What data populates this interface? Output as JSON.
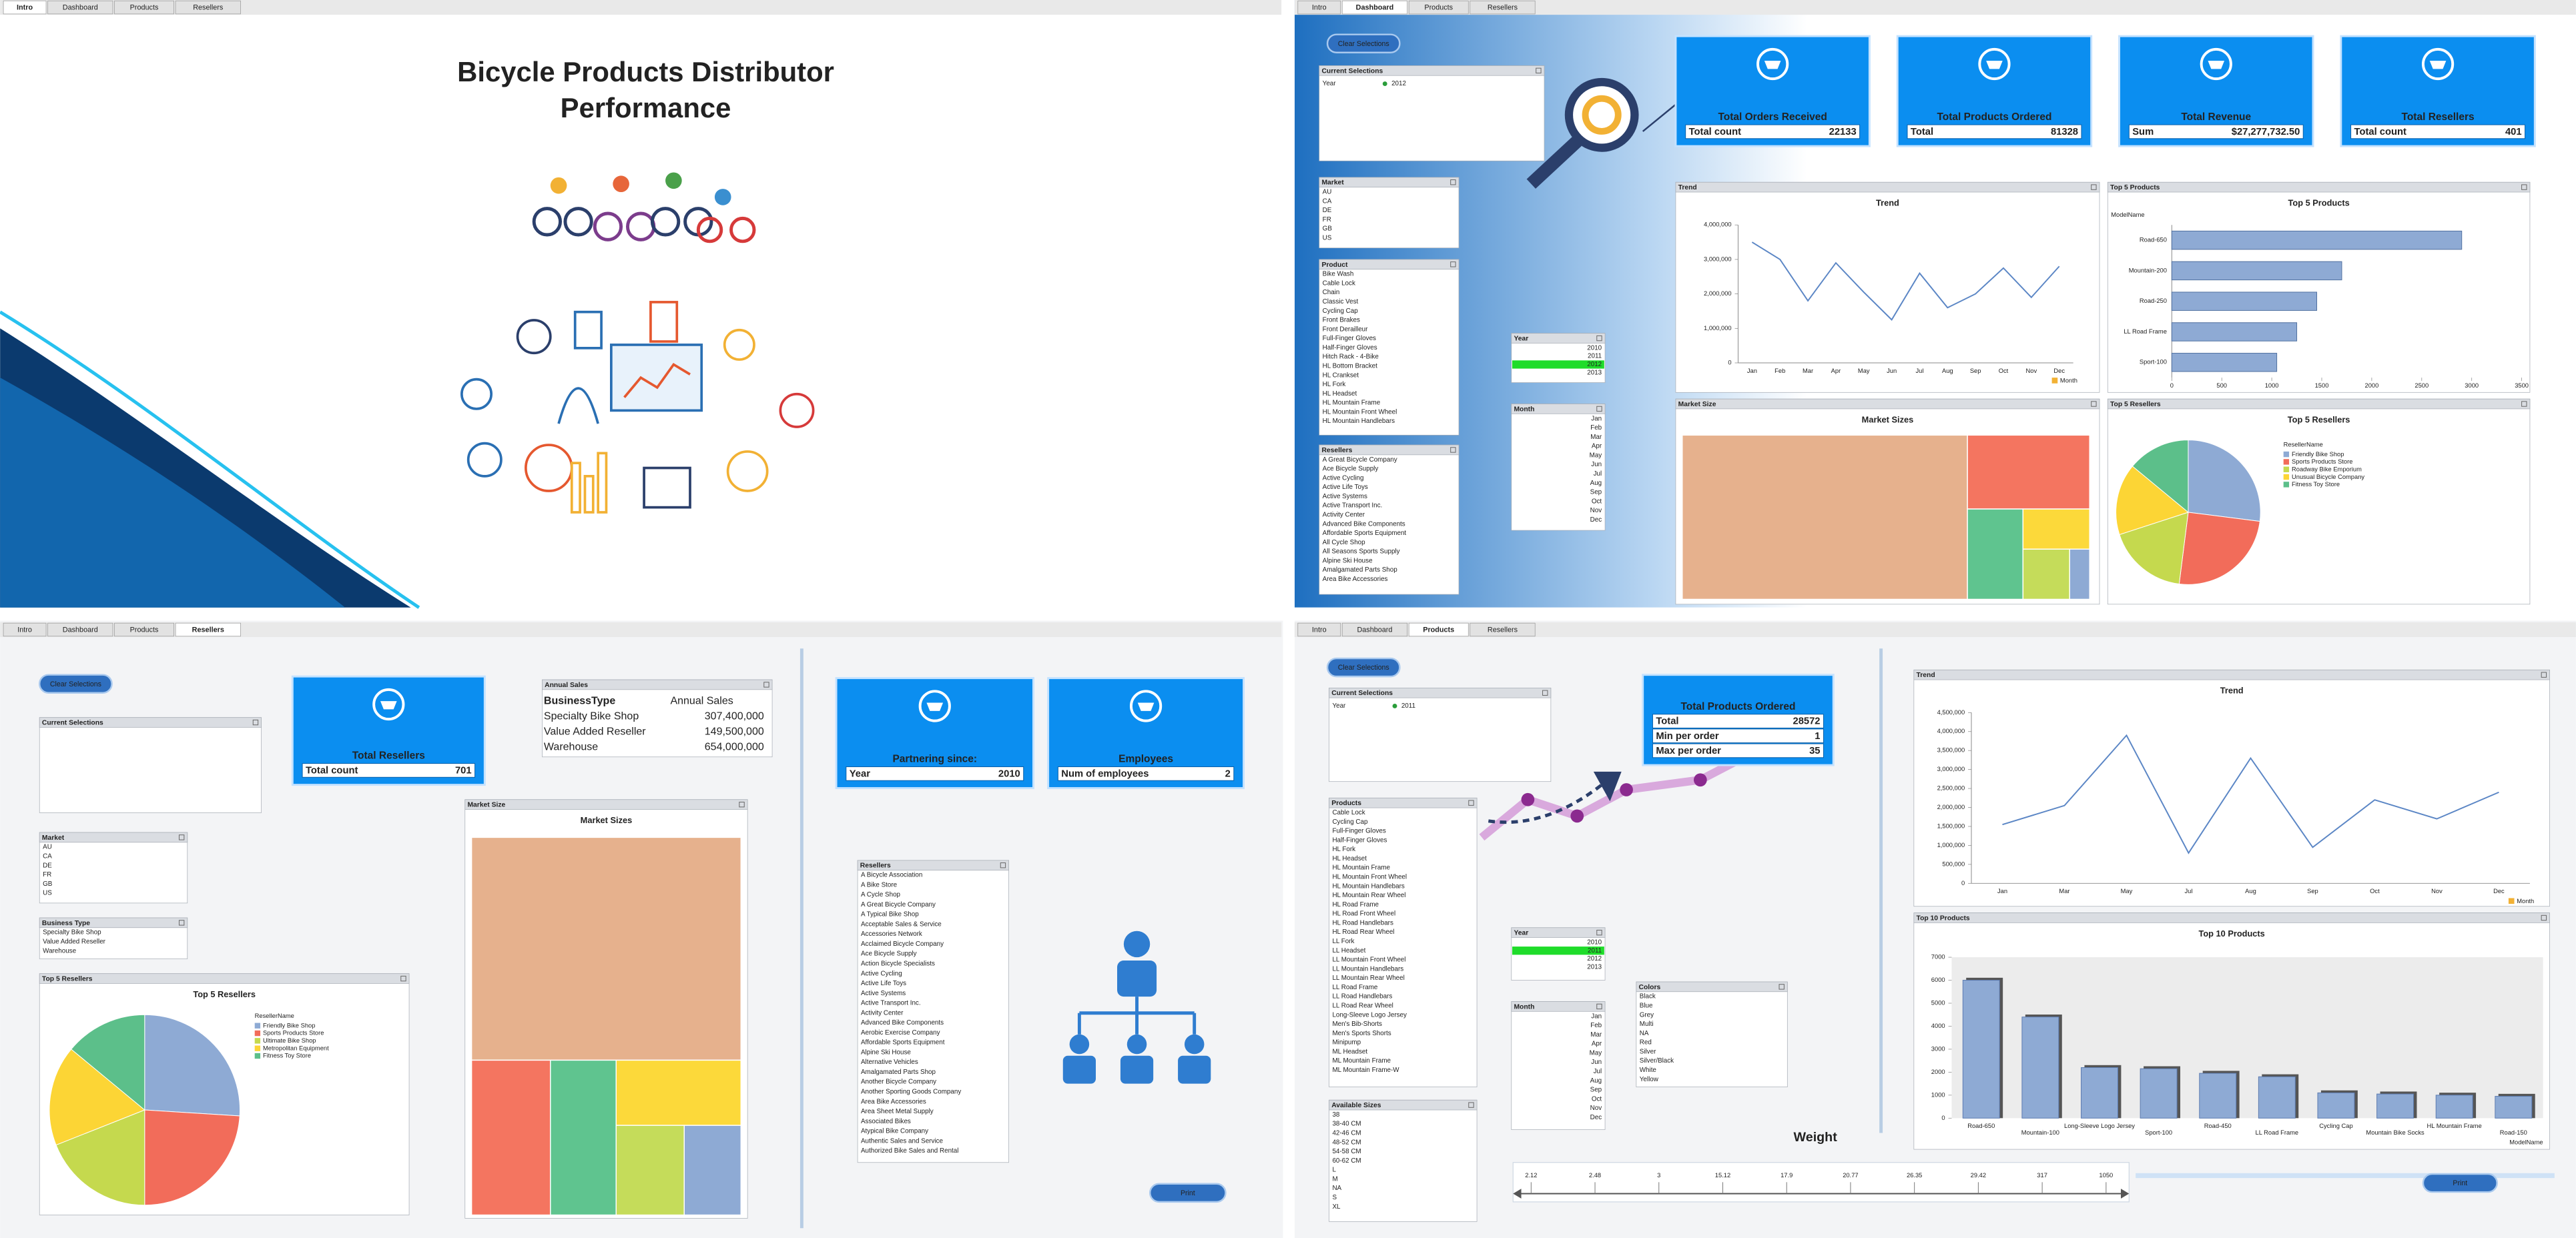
{
  "intro": {
    "tabs": [
      "Intro",
      "Dashboard",
      "Products",
      "Resellers"
    ],
    "active_tab": 0,
    "title": [
      "Bicycle Products Distributor",
      "Performance"
    ]
  },
  "dashboard": {
    "tabs": [
      "Intro",
      "Dashboard",
      "Products",
      "Resellers"
    ],
    "active_tab": 1,
    "clear": "Clear Selections",
    "current": {
      "title": "Current Selections",
      "field": "Year",
      "value": "2012"
    },
    "market": {
      "title": "Market",
      "items": [
        "AU",
        "CA",
        "DE",
        "FR",
        "GB",
        "US"
      ]
    },
    "product": {
      "title": "Product",
      "items": [
        "Bike Wash",
        "Cable Lock",
        "Chain",
        "Classic Vest",
        "Cycling Cap",
        "Front Brakes",
        "Front Derailleur",
        "Full-Finger Gloves",
        "Half-Finger Gloves",
        "Hitch Rack - 4-Bike",
        "HL Bottom Bracket",
        "HL Crankset",
        "HL Fork",
        "HL Headset",
        "HL Mountain Frame",
        "HL Mountain Front Wheel",
        "HL Mountain Handlebars"
      ]
    },
    "resellers": {
      "title": "Resellers",
      "items": [
        "A Great Bicycle Company",
        "Ace Bicycle Supply",
        "Active Cycling",
        "Active Life Toys",
        "Active Systems",
        "Active Transport Inc.",
        "Activity Center",
        "Advanced Bike Components",
        "Affordable Sports Equipment",
        "All Cycle Shop",
        "All Seasons Sports Supply",
        "Alpine Ski House",
        "Amalgamated Parts Shop",
        "Area Bike Accessories"
      ]
    },
    "year": {
      "title": "Year",
      "items": [
        "2010",
        "2011",
        "2012",
        "2013"
      ],
      "selected": 2,
      "align": "right"
    },
    "month": {
      "title": "Month",
      "items": [
        "Jan",
        "Feb",
        "Mar",
        "Apr",
        "May",
        "Jun",
        "Jul",
        "Aug",
        "Sep",
        "Oct",
        "Nov",
        "Dec"
      ],
      "align": "right"
    },
    "kpis": [
      {
        "title": "Total Orders Received",
        "rows": [
          {
            "label": "Total count",
            "value": 22133
          }
        ]
      },
      {
        "title": "Total Products Ordered",
        "rows": [
          {
            "label": "Total",
            "value": 81328
          }
        ]
      },
      {
        "title": "Total Revenue",
        "rows": [
          {
            "label": "Sum",
            "value": "$27,277,732.50"
          }
        ]
      },
      {
        "title": "Total Resellers",
        "rows": [
          {
            "label": "Total count",
            "value": 401
          }
        ]
      }
    ],
    "trend": {
      "header": "Trend",
      "type": "line",
      "title": "Trend",
      "legend": "Month",
      "color": "#5b86c5",
      "categories": [
        "Jan",
        "Feb",
        "Mar",
        "Apr",
        "May",
        "Jun",
        "Jul",
        "Aug",
        "Sep",
        "Oct",
        "Nov",
        "Dec"
      ],
      "values": [
        3500000,
        3000000,
        1800000,
        2900000,
        2050000,
        1250000,
        2600000,
        1600000,
        2000000,
        2750000,
        1900000,
        2800000
      ],
      "ylim": [
        0,
        4000000
      ],
      "yticks": [
        0,
        {
          "value": 1000000,
          "label": "1,000,000"
        },
        {
          "value": 2000000,
          "label": "2,000,000"
        },
        {
          "value": 3000000,
          "label": "3,000,000"
        },
        {
          "value": 4000000,
          "label": "4,000,000"
        }
      ]
    },
    "top_products": {
      "header": "Top 5 Products",
      "type": "hbar",
      "title": "Top 5 Products",
      "axis_label": "ModelName",
      "color": "#8eaad4",
      "categories": [
        "Road-650",
        "Mountain-200",
        "Road-250",
        "LL Road Frame",
        "Sport-100"
      ],
      "values": [
        2900,
        1700,
        1450,
        1250,
        1050
      ],
      "xlim": [
        0,
        3500
      ],
      "xticks": [
        0,
        500,
        1000,
        1500,
        2000,
        2500,
        3000,
        3500
      ]
    },
    "market_size": {
      "header": "Market Size",
      "type": "treemap",
      "title": "Market Sizes",
      "values": [
        70,
        13.5,
        7.5,
        4,
        3.5,
        1.5
      ],
      "colors": [
        "#e6b18d",
        "#f47560",
        "#5fc48f",
        "#fcd93a",
        "#c5dc5a",
        "#8eaad4"
      ]
    },
    "top_resellers": {
      "header": "Top 5 Resellers",
      "type": "pie",
      "title": "Top 5 Resellers",
      "legend_title": "ResellerName",
      "categories": [
        "Friendly Bike Shop",
        "Sports Products Store",
        "Roadway Bike Emporium",
        "Unusual Bicycle Company",
        "Fitness Toy Store"
      ],
      "values": [
        27,
        25,
        18,
        16,
        14
      ],
      "colors": [
        "#8eaad4",
        "#f26c5a",
        "#c5d94e",
        "#fcd535",
        "#5cbf8a"
      ]
    }
  },
  "resellers_page": {
    "tabs": [
      "Intro",
      "Dashboard",
      "Products",
      "Resellers"
    ],
    "active_tab": 3,
    "clear": "Clear Selections",
    "print": "Print",
    "current": {
      "title": "Current Selections"
    },
    "market": {
      "title": "Market",
      "items": [
        "AU",
        "CA",
        "DE",
        "FR",
        "GB",
        "US"
      ]
    },
    "business_type": {
      "title": "Business Type",
      "items": [
        "Specialty Bike Shop",
        "Value Added Reseller",
        "Warehouse"
      ]
    },
    "top_resellers": {
      "header": "Top 5 Resellers",
      "type": "pie",
      "title": "Top 5 Resellers",
      "legend_title": "ResellerName",
      "categories": [
        "Friendly Bike Shop",
        "Sports Products Store",
        "Ultimate Bike Shop",
        "Metropolitan Equipment",
        "Fitness Toy Store"
      ],
      "values": [
        26,
        24,
        19,
        17,
        14
      ],
      "colors": [
        "#8eaad4",
        "#f26c5a",
        "#c5d94e",
        "#fcd535",
        "#5cbf8a"
      ]
    },
    "kpi_resellers": {
      "title": "Total Resellers",
      "rows": [
        {
          "label": "Total count",
          "value": 701
        }
      ]
    },
    "annual_sales": {
      "title": "Annual Sales",
      "columns": [
        "BusinessType",
        "Annual Sales"
      ],
      "rows": [
        [
          "Specialty Bike Shop",
          "307,400,000"
        ],
        [
          "Value Added Reseller",
          "149,500,000"
        ],
        [
          "Warehouse",
          "654,000,000"
        ]
      ]
    },
    "market_size": {
      "header": "Market Size",
      "type": "treemap",
      "title": "Market Sizes",
      "values": [
        59,
        12,
        10,
        8,
        6,
        5
      ],
      "colors": [
        "#e6b18d",
        "#f47560",
        "#5fc48f",
        "#fcd93a",
        "#c5dc5a",
        "#8eaad4"
      ]
    },
    "kpi_partner": {
      "title": "Partnering since:",
      "rows": [
        {
          "label": "Year",
          "value": 2010
        }
      ]
    },
    "kpi_employees": {
      "title": "Employees",
      "rows": [
        {
          "label": "Num of employees",
          "value": 2
        }
      ]
    },
    "resellers": {
      "title": "Resellers",
      "items": [
        "A Bicycle Association",
        "A Bike Store",
        "A Cycle Shop",
        "A Great Bicycle Company",
        "A Typical Bike Shop",
        "Acceptable Sales & Service",
        "Accessories Network",
        "Acclaimed Bicycle Company",
        "Ace Bicycle Supply",
        "Action Bicycle Specialists",
        "Active Cycling",
        "Active Life Toys",
        "Active Systems",
        "Active Transport Inc.",
        "Activity Center",
        "Advanced Bike Components",
        "Aerobic Exercise Company",
        "Affordable Sports Equipment",
        "Alpine Ski House",
        "Alternative Vehicles",
        "Amalgamated Parts Shop",
        "Another Bicycle Company",
        "Another Sporting Goods Company",
        "Area Bike Accessories",
        "Area Sheet Metal Supply",
        "Associated Bikes",
        "Atypical Bike Company",
        "Authentic Sales and Service",
        "Authorized Bike Sales and Rental"
      ]
    }
  },
  "products_page": {
    "tabs": [
      "Intro",
      "Dashboard",
      "Products",
      "Resellers"
    ],
    "active_tab": 2,
    "clear": "Clear Selections",
    "print": "Print",
    "current": {
      "title": "Current Selections",
      "field": "Year",
      "value": "2011"
    },
    "kpi": {
      "title": "Total Products Ordered",
      "rows": [
        {
          "label": "Total",
          "value": 28572
        },
        {
          "label": "Min per order",
          "value": 1
        },
        {
          "label": "Max per order",
          "value": 35
        }
      ]
    },
    "products": {
      "title": "Products",
      "items": [
        "Cable Lock",
        "Cycling Cap",
        "Full-Finger Gloves",
        "Half-Finger Gloves",
        "HL Fork",
        "HL Headset",
        "HL Mountain Frame",
        "HL Mountain Front Wheel",
        "HL Mountain Handlebars",
        "HL Mountain Rear Wheel",
        "HL Road Frame",
        "HL Road Front Wheel",
        "HL Road Handlebars",
        "HL Road Rear Wheel",
        "LL Fork",
        "LL Headset",
        "LL Mountain Front Wheel",
        "LL Mountain Handlebars",
        "LL Mountain Rear Wheel",
        "LL Road Frame",
        "LL Road Handlebars",
        "LL Road Rear Wheel",
        "Long-Sleeve Logo Jersey",
        "Men's Bib-Shorts",
        "Men's Sports Shorts",
        "Minipump",
        "ML Headset",
        "ML Mountain Frame",
        "ML Mountain Frame-W"
      ]
    },
    "year": {
      "title": "Year",
      "items": [
        "2010",
        "2011",
        "2012",
        "2013"
      ],
      "selected": 1,
      "align": "right"
    },
    "month": {
      "title": "Month",
      "items": [
        "Jan",
        "Feb",
        "Mar",
        "Apr",
        "May",
        "Jun",
        "Jul",
        "Aug",
        "Sep",
        "Oct",
        "Nov",
        "Dec"
      ],
      "align": "right"
    },
    "colors": {
      "title": "Colors",
      "items": [
        "Black",
        "Blue",
        "Grey",
        "Multi",
        "NA",
        "Red",
        "Silver",
        "Silver/Black",
        "White",
        "Yellow"
      ]
    },
    "sizes": {
      "title": "Available Sizes",
      "items": [
        "38",
        "38-40 CM",
        "42-46 CM",
        "48-52 CM",
        "54-58 CM",
        "60-62 CM",
        "L",
        "M",
        "NA",
        "S",
        "XL"
      ]
    },
    "weight": {
      "title": "Weight",
      "labels": [
        "2.12",
        "2.48",
        "3",
        "15.12",
        "17.9",
        "20.77",
        "26.35",
        "29.42",
        "317",
        "1050"
      ]
    },
    "trend": {
      "header": "Trend",
      "type": "line",
      "title": "Trend",
      "legend": "Month",
      "color": "#5b86c5",
      "categories": [
        "Jan",
        "Mar",
        "May",
        "Jul",
        "Aug",
        "Sep",
        "Oct",
        "Nov",
        "Dec"
      ],
      "values": [
        1550000,
        2050000,
        3900000,
        800000,
        3300000,
        950000,
        2200000,
        1700000,
        2400000
      ],
      "ylim": [
        0,
        4500000
      ],
      "yticks": [
        0,
        {
          "value": 500000,
          "label": "500,000"
        },
        {
          "value": 1000000,
          "label": "1,000,000"
        },
        {
          "value": 1500000,
          "label": "1,500,000"
        },
        {
          "value": 2000000,
          "label": "2,000,000"
        },
        {
          "value": 2500000,
          "label": "2,500,000"
        },
        {
          "value": 3000000,
          "label": "3,000,000"
        },
        {
          "value": 3500000,
          "label": "3,500,000"
        },
        {
          "value": 4000000,
          "label": "4,000,000"
        },
        {
          "value": 4500000,
          "label": "4,500,000"
        }
      ]
    },
    "top_products": {
      "header": "Top 10 Products",
      "type": "bar",
      "title": "Top 10 Products",
      "axis_label": "ModelName",
      "color": "#8eaad4",
      "categories": [
        "Road-650",
        "Mountain-100",
        "Long-Sleeve Logo Jersey",
        "Sport-100",
        "Road-450",
        "LL Road Frame",
        "Cycling Cap",
        "Mountain Bike Socks",
        "HL Mountain Frame",
        "Road-150"
      ],
      "values": [
        6000,
        4400,
        2200,
        2150,
        1950,
        1800,
        1100,
        1050,
        1000,
        950
      ],
      "ylim": [
        0,
        7000
      ],
      "yticks": [
        0,
        1000,
        2000,
        3000,
        4000,
        5000,
        6000,
        7000
      ]
    }
  }
}
